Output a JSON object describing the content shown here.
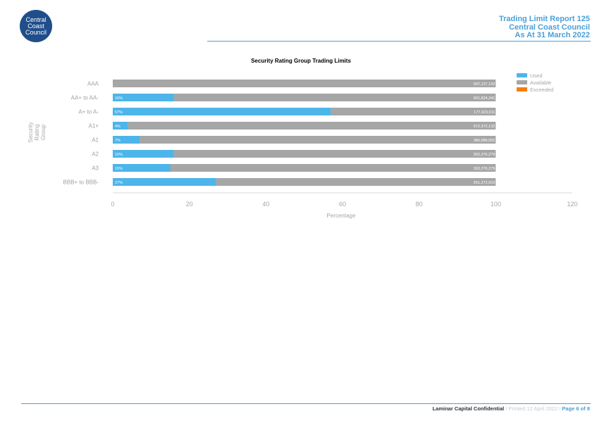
{
  "logo": {
    "line1": "Central",
    "line2": "Coast",
    "line3": "Council"
  },
  "header": {
    "line1": "Trading Limit Report 125",
    "line2": "Central Coast Council",
    "line3": "As At 31 March 2022"
  },
  "colors": {
    "accent": "#4a9fd8",
    "logo": "#1f4e8a",
    "used": "#4db5ea",
    "available": "#a6a6a6",
    "exceeded": "#f77f00"
  },
  "chart_data": {
    "type": "bar",
    "orientation": "horizontal",
    "stacked": true,
    "title": "Security Rating Group Trading Limits",
    "xlabel": "Percentage",
    "ylabel": "Security Rating Group",
    "xlim": [
      0,
      120
    ],
    "xticks": [
      "0",
      "20",
      "40",
      "60",
      "80",
      "100",
      "120"
    ],
    "categories": [
      "AAA",
      "AA+ to AA-",
      "A+ to A-",
      "A1+",
      "A1",
      "A2",
      "A3",
      "BBB+ to BBB-"
    ],
    "series": [
      {
        "name": "Used",
        "values": [
          0,
          16,
          57,
          4,
          7,
          16,
          15,
          27
        ]
      },
      {
        "name": "Available",
        "values": [
          100,
          84,
          43,
          96,
          93,
          84,
          85,
          73
        ]
      },
      {
        "name": "Exceeded",
        "values": [
          0,
          0,
          0,
          0,
          0,
          0,
          0,
          0
        ]
      }
    ],
    "used_labels": [
      "",
      "16%",
      "57%",
      "4%",
      "7%",
      "16%",
      "15%",
      "27%"
    ],
    "available_labels": [
      "597,127,132",
      "501,824,341",
      "177,923,011",
      "572,372,132",
      "386,988,092",
      "302,276,279",
      "303,276,279",
      "261,272,919"
    ],
    "legend": [
      "Used",
      "Available",
      "Exceeded"
    ],
    "legend_position": "top-right"
  },
  "footer": {
    "confidential": "Laminar Capital Confidential",
    "printed": " / Printed 12 April 2022 / ",
    "page": "Page 6 of 8"
  }
}
